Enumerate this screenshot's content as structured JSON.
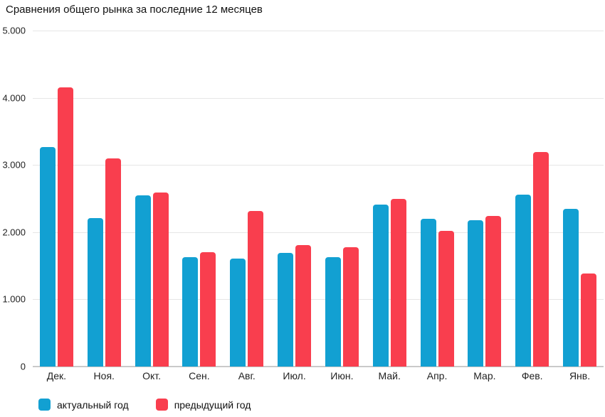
{
  "title": "Сравнения общего рынка за последние 12 месяцев",
  "colors": {
    "actual_year": "#12a0d2",
    "previous_year": "#f93e4e",
    "gridline": "#e6e6e6",
    "baseline": "#c9c9c9",
    "text": "#111111"
  },
  "chart_data": {
    "type": "bar",
    "title": "Сравнения общего рынка за последние 12 месяцев",
    "categories": [
      "Дек.",
      "Ноя.",
      "Окт.",
      "Сен.",
      "Авг.",
      "Июл.",
      "Июн.",
      "Май.",
      "Апр.",
      "Мар.",
      "Фев.",
      "Янв."
    ],
    "series": [
      {
        "name": "актуальный год",
        "color": "#12a0d2",
        "values": [
          3270,
          2210,
          2550,
          1630,
          1610,
          1690,
          1630,
          2410,
          2200,
          2180,
          2560,
          2350
        ]
      },
      {
        "name": "предыдущий год",
        "color": "#f93e4e",
        "values": [
          4150,
          3100,
          2590,
          1700,
          2320,
          1810,
          1780,
          2490,
          2020,
          2240,
          3190,
          1390
        ]
      }
    ],
    "xlabel": "",
    "ylabel": "",
    "ylim": [
      0,
      5000
    ],
    "ytick_labels": [
      "5.000",
      "4.000",
      "3.000",
      "2.000",
      "1.000",
      "0"
    ],
    "grid": true,
    "legend_position": "bottom-left"
  }
}
